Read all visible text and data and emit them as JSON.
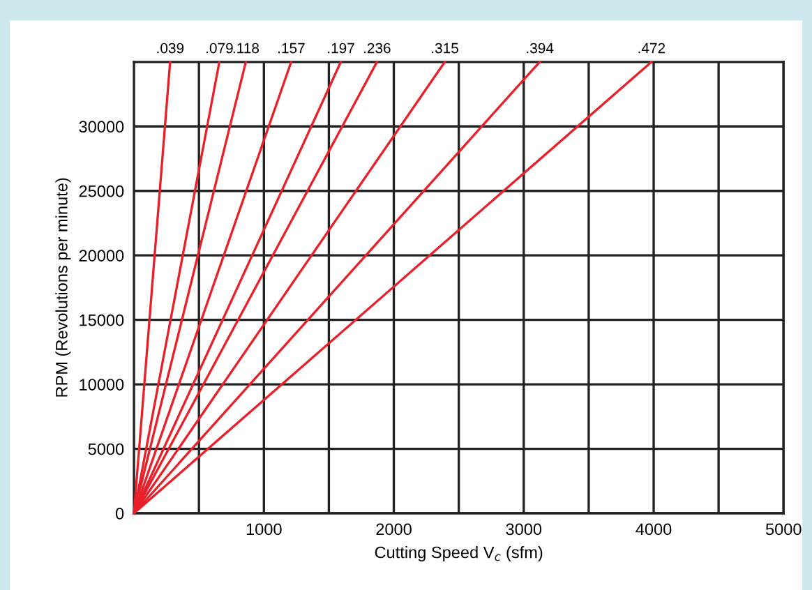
{
  "chart_data": {
    "type": "line",
    "xlabel": "Cutting Speed V$_{c}$ (sfm)",
    "ylabel": "RPM (Revolutions per minute)",
    "xlim": [
      0,
      5000
    ],
    "ylim": [
      0,
      35000
    ],
    "xticks": [
      {
        "value": 500,
        "label": null
      },
      1000,
      {
        "value": 1500,
        "label": null
      },
      2000,
      {
        "value": 2500,
        "label": null
      },
      3000,
      {
        "value": 3500,
        "label": null
      },
      4000,
      {
        "value": 4500,
        "label": null
      },
      5000
    ],
    "yticks": [
      0,
      5000,
      10000,
      15000,
      20000,
      25000,
      30000
    ],
    "grid": true,
    "marker": "none",
    "line_style": "solid",
    "series": [
      {
        "name": ".039",
        "color": "#e8202a",
        "x": [
          0,
          278
        ],
        "values": [
          0,
          35000
        ]
      },
      {
        "name": ".079",
        "color": "#e8202a",
        "x": [
          0,
          657
        ],
        "values": [
          0,
          35000
        ]
      },
      {
        "name": ".118",
        "color": "#e8202a",
        "x": [
          0,
          861
        ],
        "values": [
          0,
          35000
        ]
      },
      {
        "name": ".157",
        "color": "#e8202a",
        "x": [
          0,
          1210
        ],
        "values": [
          0,
          35000
        ]
      },
      {
        "name": ".197",
        "color": "#e8202a",
        "x": [
          0,
          1592
        ],
        "values": [
          0,
          35000
        ]
      },
      {
        "name": ".236",
        "color": "#e8202a",
        "x": [
          0,
          1870
        ],
        "values": [
          0,
          35000
        ]
      },
      {
        "name": ".315",
        "color": "#e8202a",
        "x": [
          0,
          2392
        ],
        "values": [
          0,
          35000
        ]
      },
      {
        "name": ".394",
        "color": "#e8202a",
        "x": [
          0,
          3123
        ],
        "values": [
          0,
          35000
        ]
      },
      {
        "name": ".472",
        "color": "#e8202a",
        "x": [
          0,
          3983
        ],
        "values": [
          0,
          35000
        ]
      }
    ]
  }
}
